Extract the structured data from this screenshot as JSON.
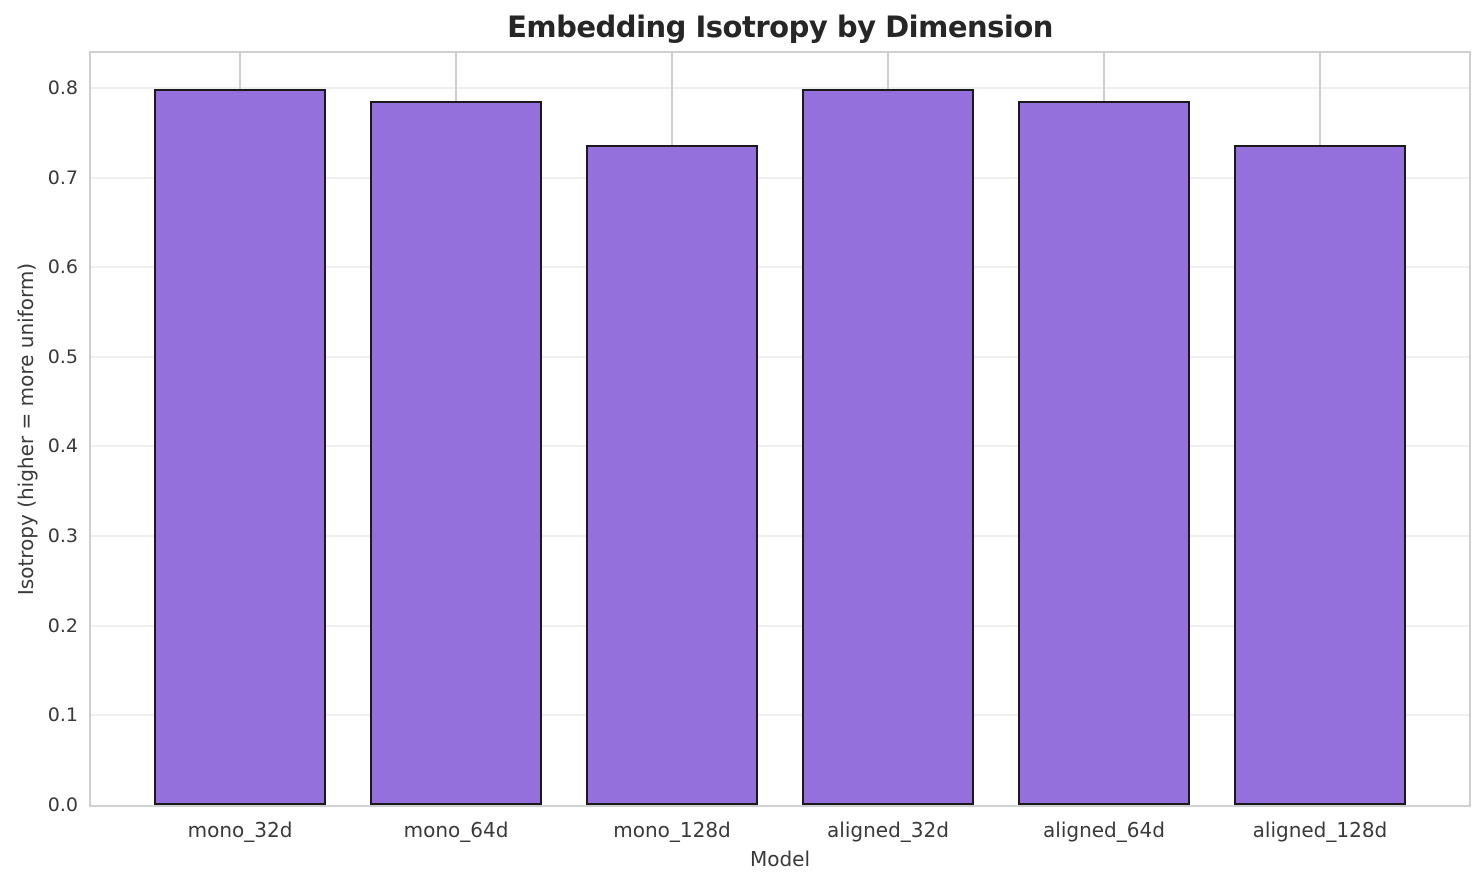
{
  "chart_data": {
    "type": "bar",
    "title": "Embedding Isotropy by Dimension",
    "xlabel": "Model",
    "ylabel": "Isotropy (higher = more uniform)",
    "categories": [
      "mono_32d",
      "mono_64d",
      "mono_128d",
      "aligned_32d",
      "aligned_64d",
      "aligned_128d"
    ],
    "values": [
      0.799,
      0.785,
      0.736,
      0.799,
      0.785,
      0.736
    ],
    "ylim": [
      0,
      0.839
    ],
    "yticks": [
      0.0,
      0.1,
      0.2,
      0.3,
      0.4,
      0.5,
      0.6,
      0.7,
      0.8
    ],
    "ytick_labels": [
      "0.0",
      "0.1",
      "0.2",
      "0.3",
      "0.4",
      "0.5",
      "0.6",
      "0.7",
      "0.8"
    ],
    "grid": "both",
    "legend_position": "none",
    "bar_color": "#9370DB",
    "bar_edge_color": "#1a1a1a",
    "grid_color_horizontal": "#efefef",
    "grid_color_vertical": "#cfcfcf",
    "spine_color": "#d0d0d0",
    "title_color": "#262626",
    "tick_label_color": "#3a3a3a",
    "background_color": "#ffffff"
  }
}
